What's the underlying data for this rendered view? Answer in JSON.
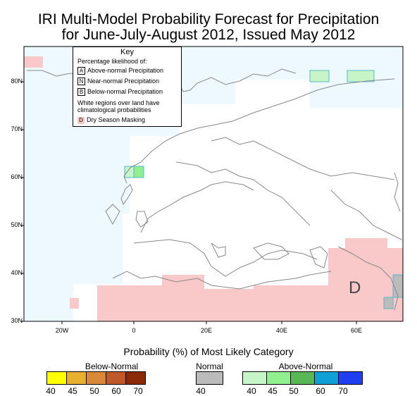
{
  "title": {
    "line1": "IRI Multi-Model Probability Forecast for Precipitation",
    "line2": "for June-July-August 2012, Issued May 2012"
  },
  "axes": {
    "lat_labels": [
      "80N",
      "70N",
      "60N",
      "50N",
      "40N",
      "30N"
    ],
    "lon_labels": [
      "20W",
      "0",
      "20E",
      "40E",
      "60E"
    ]
  },
  "key": {
    "title": "Key",
    "subtitle": "Percentage likelihood of:",
    "items": [
      {
        "letter": "A",
        "label": "Above-normal Precipitation"
      },
      {
        "letter": "N",
        "label": "Near-normal Precipitation"
      },
      {
        "letter": "B",
        "label": "Below-normal Precipitation"
      }
    ],
    "note": "White regions over land have climatological probabilities",
    "dry": {
      "letter": "D",
      "label": "Dry Season Masking"
    }
  },
  "map_letter": "D",
  "legend": {
    "title": "Probability (%) of Most Likely Category",
    "below": {
      "label": "Below-Normal",
      "ticks": [
        "40",
        "45",
        "50",
        "60",
        "70"
      ],
      "colors": [
        "#ffff00",
        "#e8b030",
        "#d98838",
        "#c0582a",
        "#8a2a08"
      ]
    },
    "normal": {
      "label": "Normal",
      "ticks": [
        "40"
      ],
      "colors": [
        "#bbbbbb"
      ]
    },
    "above": {
      "label": "Above-Normal",
      "ticks": [
        "40",
        "45",
        "50",
        "60",
        "70"
      ],
      "colors": [
        "#c8f5c8",
        "#90f090",
        "#58b858",
        "#10a0d8",
        "#2040f0"
      ]
    }
  },
  "colors": {
    "ocean": "#eef8ff",
    "dry_mask": "#f9c8c8",
    "above_40": "#c8f5c8",
    "above_45": "#90f090",
    "normal": "#bbbbbb",
    "coast": "#888888"
  }
}
